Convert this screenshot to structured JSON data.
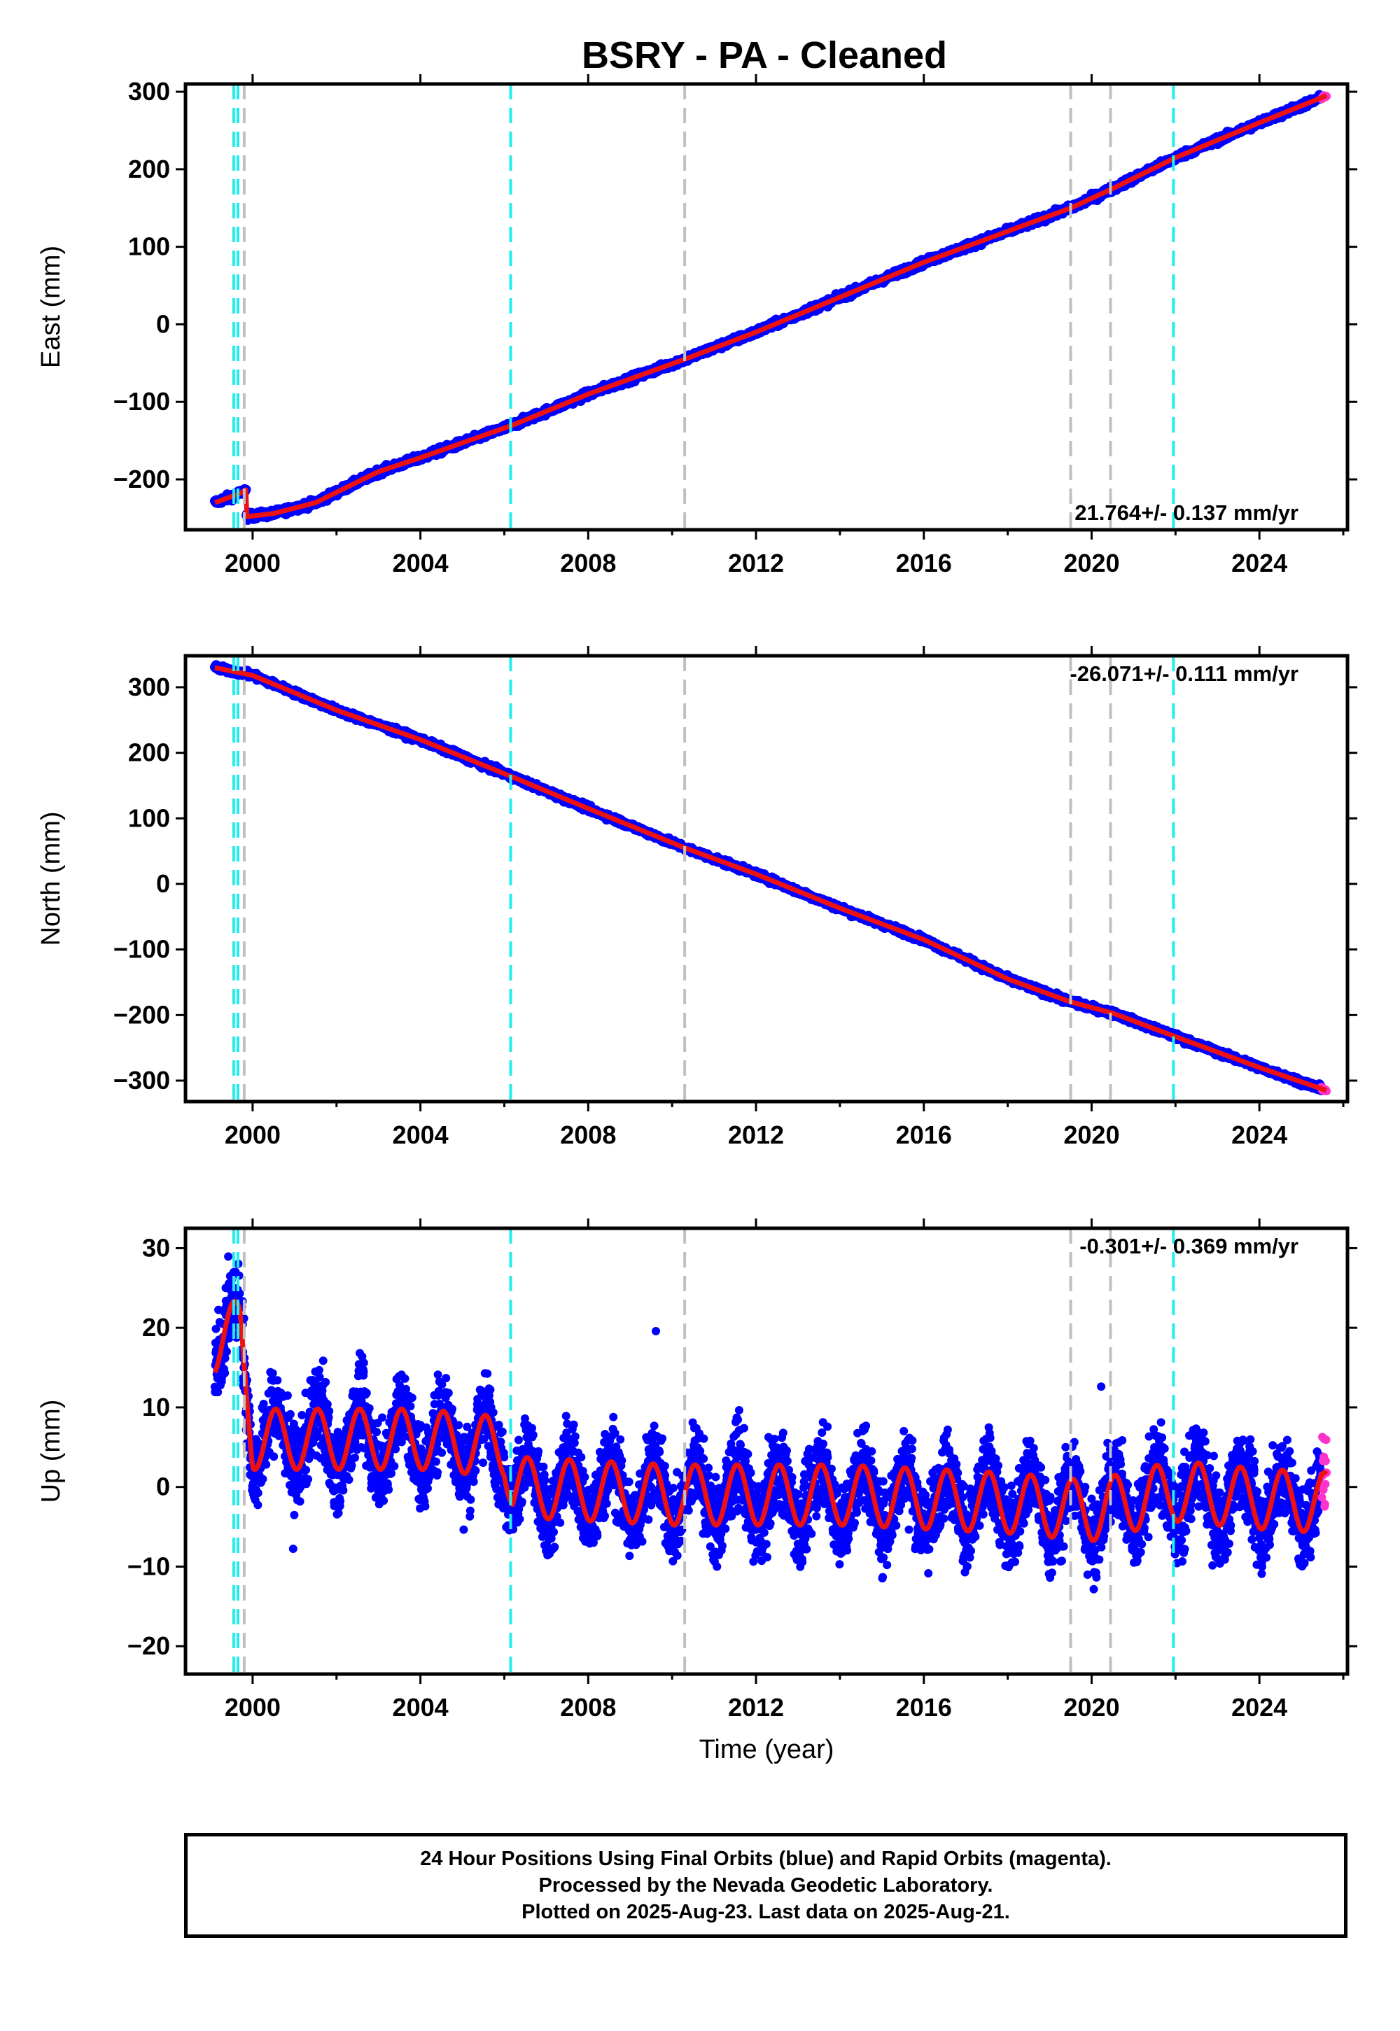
{
  "title": "BSRY  - PA - Cleaned",
  "colors": {
    "final_points": "#0000ff",
    "rapid_points": "#ff33cc",
    "model": "#ee1111",
    "antenna_break": "#22eeee",
    "equipment_break": "#c0c0c0",
    "frame": "#000000"
  },
  "chart_data": [
    {
      "type": "scatter",
      "component": "east",
      "ylabel": "East (mm)",
      "xlabel": "",
      "xlim": [
        1998.4,
        2026.1
      ],
      "ylim": [
        -265,
        310
      ],
      "yticks": [
        -200,
        -100,
        0,
        100,
        200,
        300
      ],
      "xticks": [
        2000,
        2004,
        2008,
        2012,
        2016,
        2020,
        2024
      ],
      "rate_label": "21.764+/- 0.137 mm/yr",
      "rate_position": "bottom-right",
      "rate_mm_per_yr": 21.764,
      "series": [
        {
          "x": [
            1999.1,
            1999.7,
            1999.85
          ],
          "y": [
            -230,
            -218,
            -213
          ]
        },
        {
          "x": [
            1999.85,
            2000.5,
            2001.5,
            2003.0,
            2004.0,
            2006.2,
            2008.0,
            2010.3,
            2012.0,
            2014.0,
            2016.0,
            2018.0,
            2019.5,
            2020.5,
            2022.0,
            2024.0,
            2025.6
          ],
          "y": [
            -248,
            -244,
            -230,
            -190,
            -172,
            -130,
            -90,
            -45,
            -10,
            35,
            80,
            120,
            150,
            175,
            215,
            260,
            295
          ]
        }
      ]
    },
    {
      "type": "scatter",
      "component": "north",
      "ylabel": "North (mm)",
      "xlabel": "",
      "xlim": [
        1998.4,
        2026.1
      ],
      "ylim": [
        -332,
        348
      ],
      "yticks": [
        -300,
        -200,
        -100,
        0,
        100,
        200,
        300
      ],
      "xticks": [
        2000,
        2004,
        2008,
        2012,
        2016,
        2020,
        2024
      ],
      "rate_label": "-26.071+/- 0.111 mm/yr",
      "rate_position": "top-right",
      "rate_mm_per_yr": -26.071,
      "series": [
        {
          "x": [
            1999.1,
            2000.0,
            2002.0,
            2004.0,
            2006.2,
            2008.0,
            2010.3,
            2012.0,
            2014.0,
            2016.0,
            2018.0,
            2019.5,
            2020.5,
            2022.0,
            2024.0,
            2025.6
          ],
          "y": [
            330,
            318,
            265,
            220,
            163,
            115,
            55,
            15,
            -37,
            -85,
            -145,
            -180,
            -197,
            -233,
            -280,
            -315
          ]
        }
      ]
    },
    {
      "type": "scatter",
      "component": "up",
      "ylabel": "Up (mm)",
      "xlabel": "Time (year)",
      "xlim": [
        1998.4,
        2026.1
      ],
      "ylim": [
        -23.5,
        32.5
      ],
      "yticks": [
        -20,
        -10,
        0,
        10,
        20,
        30
      ],
      "xticks": [
        2000,
        2004,
        2008,
        2012,
        2016,
        2020,
        2024
      ],
      "rate_label": "-0.301+/- 0.369 mm/yr",
      "rate_position": "top-right",
      "rate_mm_per_yr": -0.301,
      "annual_amplitude_mm": 3.8,
      "series": [
        {
          "x": [
            1999.1,
            1999.7,
            2000.0,
            2002.0,
            2004.0,
            2006.0,
            2006.2,
            2010.0,
            2014.0,
            2018.0,
            2020.0,
            2022.0,
            2024.0,
            2025.6
          ],
          "y": [
            18,
            20,
            6,
            6,
            6,
            5,
            0,
            -1,
            -1,
            -2,
            -3,
            -0.5,
            -1.5,
            -2
          ]
        }
      ]
    }
  ],
  "breaks": {
    "antenna": [
      1999.55,
      1999.65,
      2006.15,
      2021.95
    ],
    "equipment": [
      1999.8,
      2010.3,
      2019.5,
      2020.45
    ]
  },
  "footer": {
    "line1": "24 Hour Positions Using Final Orbits (blue) and Rapid Orbits (magenta).",
    "line2": "Processed by the Nevada Geodetic Laboratory.",
    "line3": "Plotted on 2025-Aug-23. Last data on 2025-Aug-21."
  }
}
